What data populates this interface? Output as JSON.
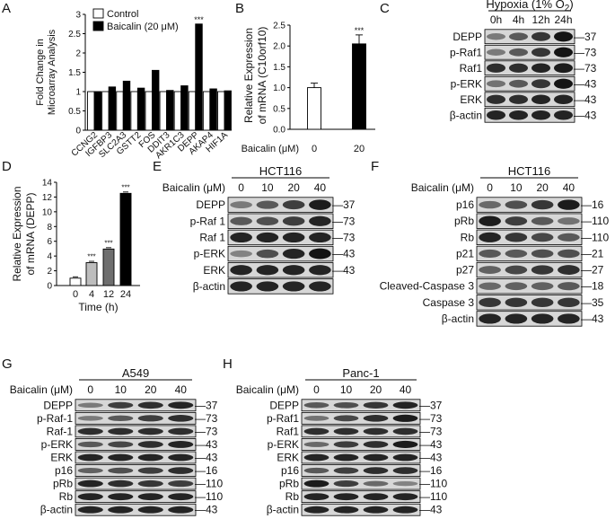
{
  "panel_labels": {
    "A": "A",
    "B": "B",
    "C": "C",
    "D": "D",
    "E": "E",
    "F": "F",
    "G": "G",
    "H": "H"
  },
  "blot_marks": {
    "tick": "—"
  },
  "chart_data": [
    {
      "panel": "A",
      "type": "bar",
      "ylabel": "Fold Change in Microarray Analysis",
      "ylim": [
        0,
        3
      ],
      "yticks": [
        "0",
        "0.5",
        "1",
        "1.5",
        "2",
        "2.5",
        "3"
      ],
      "categories": [
        "CCNG2",
        "IGFBP3",
        "SLC2A3",
        "GSTT2",
        "FOS",
        "DDIT3",
        "AKR1C3",
        "DEPP",
        "AKAP4",
        "HIF1A"
      ],
      "series": [
        {
          "name": "Control",
          "values": [
            1,
            1,
            1,
            1,
            1,
            1,
            1,
            1,
            1,
            1
          ],
          "color": "#ffffff"
        },
        {
          "name": "Baicalin (20 μM)",
          "values": [
            1.0,
            1.12,
            1.27,
            1.09,
            1.55,
            1.03,
            1.15,
            2.75,
            1.07,
            1.02
          ],
          "color": "#000000"
        }
      ],
      "annotation": "***",
      "legend": "top-left"
    },
    {
      "panel": "B",
      "type": "bar",
      "ylabel": "Relative Expression of mRNA (C10orf10)",
      "xlabel": "Baicalin (μM)",
      "ylim": [
        0,
        2.5
      ],
      "yticks": [
        "0.0",
        "0.5",
        "1.0",
        "1.5",
        "2.0",
        "2.5"
      ],
      "categories": [
        "0",
        "20"
      ],
      "values": [
        1.0,
        2.05
      ],
      "colors": [
        "#ffffff",
        "#000000"
      ],
      "annotation": "***"
    },
    {
      "panel": "D",
      "type": "bar",
      "ylabel": "Relative Expression of mRNA (DEPP)",
      "xlabel": "Time (h)",
      "ylim": [
        0,
        14
      ],
      "yticks": [
        "0",
        "2",
        "4",
        "6",
        "8",
        "10",
        "12",
        "14"
      ],
      "categories": [
        "0",
        "4",
        "12",
        "24"
      ],
      "values": [
        1.0,
        3.1,
        4.95,
        12.5
      ],
      "colors": [
        "#ffffff",
        "#bdbdbd",
        "#6e6e6e",
        "#000000"
      ],
      "annotation": "***"
    },
    {
      "panel": "C",
      "type": "blot",
      "header": "Hypoxia (1% O",
      "header_sub": "2",
      "header_end": ")",
      "conditions": [
        "0h",
        "4h",
        "12h",
        "24h"
      ],
      "bands": [
        {
          "label": "DEPP",
          "kda": "37",
          "levels": [
            0.35,
            0.55,
            0.75,
            0.95
          ]
        },
        {
          "label": "p-Raf1",
          "kda": "73",
          "levels": [
            0.35,
            0.55,
            0.75,
            0.95
          ]
        },
        {
          "label": "Raf1",
          "kda": "73",
          "levels": [
            0.8,
            0.8,
            0.85,
            0.9
          ]
        },
        {
          "label": "p-ERK",
          "kda": "43",
          "levels": [
            0.4,
            0.55,
            0.75,
            0.95
          ]
        },
        {
          "label": "ERK",
          "kda": "43",
          "levels": [
            0.8,
            0.8,
            0.85,
            0.85
          ]
        },
        {
          "label": "β-actin",
          "kda": "43",
          "levels": [
            0.85,
            0.85,
            0.85,
            0.85
          ]
        }
      ]
    },
    {
      "panel": "E",
      "type": "blot",
      "cell_line": "HCT116",
      "axis_label": "Baicalin (μM)",
      "conditions": [
        "0",
        "10",
        "20",
        "40"
      ],
      "bands": [
        {
          "label": "DEPP",
          "kda": "37",
          "levels": [
            0.35,
            0.55,
            0.7,
            0.9
          ]
        },
        {
          "label": "p-Raf 1",
          "kda": "73",
          "levels": [
            0.55,
            0.6,
            0.7,
            0.85
          ]
        },
        {
          "label": "Raf 1",
          "kda": "73",
          "levels": [
            0.85,
            0.85,
            0.85,
            0.85
          ]
        },
        {
          "label": "p-ERK",
          "kda": "43",
          "levels": [
            0.3,
            0.6,
            0.85,
            0.95
          ]
        },
        {
          "label": "ERK",
          "kda": "43",
          "levels": [
            0.85,
            0.85,
            0.85,
            0.85
          ]
        },
        {
          "label": "β-actin",
          "kda": "",
          "levels": [
            0.85,
            0.85,
            0.85,
            0.85
          ]
        }
      ]
    },
    {
      "panel": "F",
      "type": "blot",
      "cell_line": "HCT116",
      "axis_label": "Baicalin (μM)",
      "conditions": [
        "0",
        "10",
        "20",
        "40"
      ],
      "bands": [
        {
          "label": "p16",
          "kda": "16",
          "levels": [
            0.45,
            0.6,
            0.75,
            0.9
          ]
        },
        {
          "label": "pRb",
          "kda": "110",
          "levels": [
            0.9,
            0.7,
            0.55,
            0.4
          ]
        },
        {
          "label": "Rb",
          "kda": "110",
          "levels": [
            0.85,
            0.75,
            0.65,
            0.55
          ]
        },
        {
          "label": "p21",
          "kda": "21",
          "levels": [
            0.55,
            0.55,
            0.6,
            0.6
          ]
        },
        {
          "label": "p27",
          "kda": "27",
          "levels": [
            0.5,
            0.65,
            0.75,
            0.8
          ]
        },
        {
          "label": "Cleaved-Caspase 3",
          "kda": "18",
          "levels": [
            0.45,
            0.5,
            0.5,
            0.55
          ]
        },
        {
          "label": "Caspase 3",
          "kda": "35",
          "levels": [
            0.75,
            0.75,
            0.75,
            0.75
          ]
        },
        {
          "label": "β-actin",
          "kda": "43",
          "levels": [
            0.85,
            0.85,
            0.85,
            0.85
          ]
        }
      ]
    },
    {
      "panel": "G",
      "type": "blot",
      "cell_line": "A549",
      "axis_label": "Baicalin (μM)",
      "conditions": [
        "0",
        "10",
        "20",
        "40"
      ],
      "bands": [
        {
          "label": "DEPP",
          "kda": "37",
          "levels": [
            0.35,
            0.7,
            0.8,
            0.85
          ]
        },
        {
          "label": "p-Raf-1",
          "kda": "73",
          "levels": [
            0.35,
            0.55,
            0.7,
            0.8
          ]
        },
        {
          "label": "Raf-1",
          "kda": "73",
          "levels": [
            0.8,
            0.8,
            0.8,
            0.8
          ]
        },
        {
          "label": "p-ERK",
          "kda": "43",
          "levels": [
            0.55,
            0.65,
            0.8,
            0.85
          ]
        },
        {
          "label": "ERK",
          "kda": "43",
          "levels": [
            0.85,
            0.85,
            0.85,
            0.85
          ]
        },
        {
          "label": "p16",
          "kda": "16",
          "levels": [
            0.5,
            0.6,
            0.7,
            0.8
          ]
        },
        {
          "label": "pRb",
          "kda": "110",
          "levels": [
            0.85,
            0.8,
            0.75,
            0.7
          ]
        },
        {
          "label": "Rb",
          "kda": "110",
          "levels": [
            0.85,
            0.85,
            0.85,
            0.85
          ]
        },
        {
          "label": "β-actin",
          "kda": "43",
          "levels": [
            0.85,
            0.85,
            0.85,
            0.85
          ]
        }
      ]
    },
    {
      "panel": "H",
      "type": "blot",
      "cell_line": "Panc-1",
      "axis_label": "Baicalin (μM)",
      "conditions": [
        "0",
        "10",
        "20",
        "40"
      ],
      "bands": [
        {
          "label": "DEPP",
          "kda": "37",
          "levels": [
            0.55,
            0.6,
            0.75,
            0.85
          ]
        },
        {
          "label": "p-Raf1",
          "kda": "73",
          "levels": [
            0.4,
            0.65,
            0.8,
            0.9
          ]
        },
        {
          "label": "Raf1",
          "kda": "73",
          "levels": [
            0.8,
            0.8,
            0.8,
            0.8
          ]
        },
        {
          "label": "p-ERK",
          "kda": "43",
          "levels": [
            0.45,
            0.7,
            0.8,
            0.9
          ]
        },
        {
          "label": "ERK",
          "kda": "43",
          "levels": [
            0.85,
            0.85,
            0.85,
            0.85
          ]
        },
        {
          "label": "p16",
          "kda": "16",
          "levels": [
            0.55,
            0.7,
            0.8,
            0.8
          ]
        },
        {
          "label": "pRb",
          "kda": "110",
          "levels": [
            0.9,
            0.7,
            0.45,
            0.3
          ]
        },
        {
          "label": "Rb",
          "kda": "110",
          "levels": [
            0.85,
            0.85,
            0.85,
            0.85
          ]
        },
        {
          "label": "β-actin",
          "kda": "43",
          "levels": [
            0.85,
            0.85,
            0.85,
            0.85
          ]
        }
      ]
    }
  ]
}
